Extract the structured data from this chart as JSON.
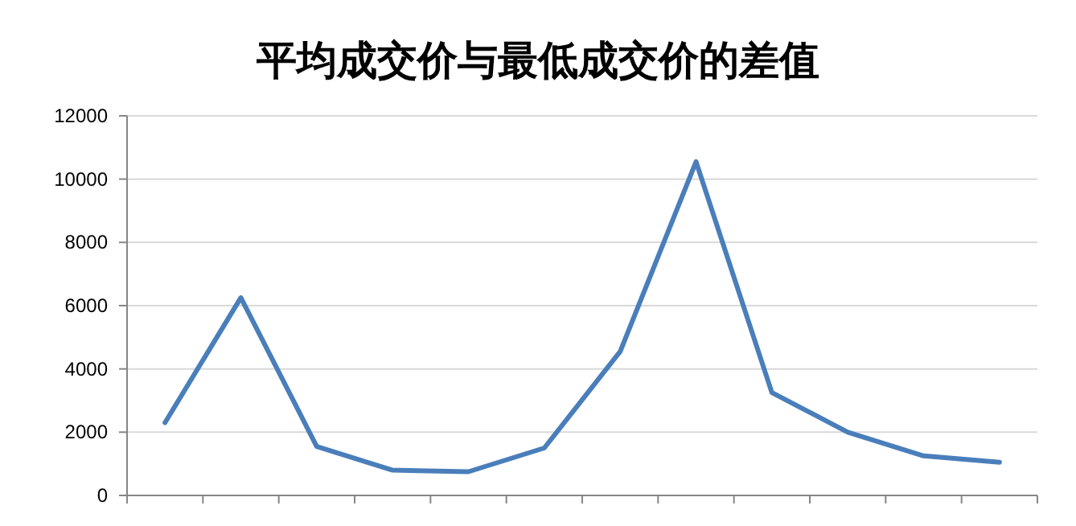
{
  "chart_data": {
    "type": "line",
    "title": "平均成交价与最低成交价的差值",
    "categories": [
      null,
      null,
      null,
      null,
      null,
      null,
      null,
      null,
      null,
      null,
      null,
      null
    ],
    "values": [
      2300,
      6250,
      1550,
      800,
      750,
      1500,
      4550,
      10550,
      3250,
      2000,
      1250,
      1050
    ],
    "color": "#4a7ebb",
    "ylim": [
      0,
      12000
    ],
    "yticks": [
      0,
      2000,
      4000,
      6000,
      8000,
      10000,
      12000
    ],
    "grid": "y"
  }
}
